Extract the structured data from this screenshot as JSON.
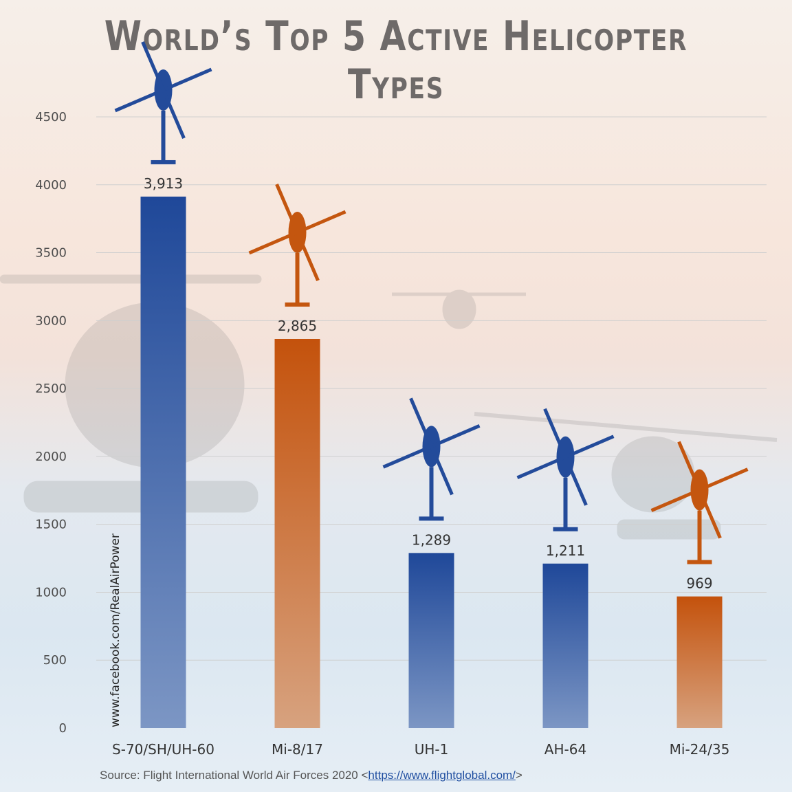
{
  "title": "World’s Top 5 Active Helicopter Types",
  "watermark": "www.facebook.com/RealAirPower",
  "source": {
    "prefix": "Source: Flight International World Air Forces 2020 <",
    "link": "https://www.flightglobal.com/",
    "suffix": ">"
  },
  "colors": {
    "blue": "#234b9a",
    "orange": "#c4560f"
  },
  "chart_data": {
    "type": "bar",
    "categories": [
      "S-70/SH/UH-60",
      "Mi-8/17",
      "UH-1",
      "AH-64",
      "Mi-24/35"
    ],
    "values": [
      3913,
      2865,
      1289,
      1211,
      969
    ],
    "value_labels": [
      "3,913",
      "2,865",
      "1,289",
      "1,211",
      "969"
    ],
    "bar_colors": [
      "blue",
      "orange",
      "blue",
      "blue",
      "orange"
    ],
    "yticks": [
      "0",
      "500",
      "1000",
      "1500",
      "2000",
      "2500",
      "3000",
      "3500",
      "4000",
      "4500"
    ],
    "ylim": [
      0,
      4500
    ],
    "grid": true,
    "legend": "none"
  }
}
